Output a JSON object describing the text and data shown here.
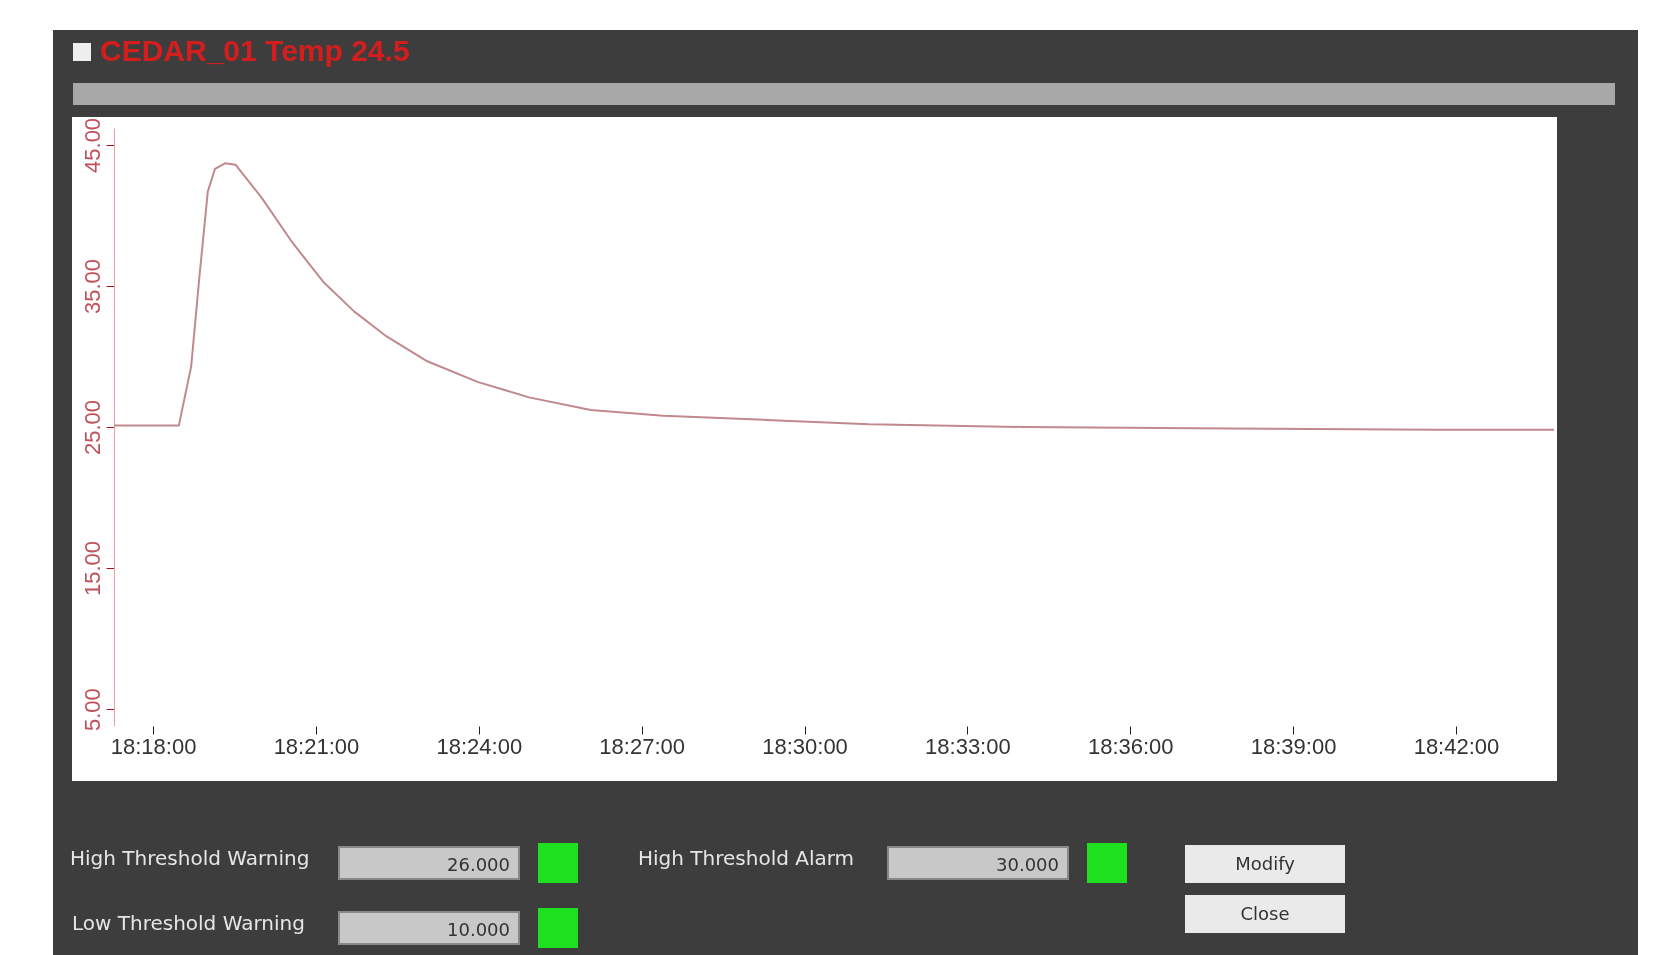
{
  "chart_data": {
    "type": "line",
    "title": "CEDAR_01 Temp   24.5",
    "x": [
      18.288,
      18.3079,
      18.3117,
      18.3142,
      18.3168,
      18.319,
      18.3221,
      18.3253,
      18.3332,
      18.3427,
      18.3522,
      18.3617,
      18.3712,
      18.3838,
      18.3996,
      18.4154,
      18.4344,
      18.4566,
      18.4882,
      18.5198,
      18.5672,
      18.6305,
      18.6937,
      18.7301
    ],
    "series": [
      {
        "color": "#c0898e",
        "values": [
          25.1,
          25.1,
          29.3,
          35.6,
          41.7,
          43.3,
          43.7,
          43.6,
          41.3,
          38.1,
          35.3,
          33.2,
          31.5,
          29.7,
          28.2,
          27.1,
          26.2,
          25.8,
          25.5,
          25.2,
          25.0,
          24.9,
          24.8,
          24.8
        ]
      }
    ],
    "xlim": [
      18.288,
      18.7301
    ],
    "xticks": [
      {
        "value": 18.3,
        "label": "18:18:00"
      },
      {
        "value": 18.35,
        "label": "18:21:00"
      },
      {
        "value": 18.4,
        "label": "18:24:00"
      },
      {
        "value": 18.45,
        "label": "18:27:00"
      },
      {
        "value": 18.5,
        "label": "18:30:00"
      },
      {
        "value": 18.55,
        "label": "18:33:00"
      },
      {
        "value": 18.6,
        "label": "18:36:00"
      },
      {
        "value": 18.65,
        "label": "18:39:00"
      },
      {
        "value": 18.7,
        "label": "18:42:00"
      }
    ],
    "ylim": [
      3.8,
      46.2
    ],
    "yticks": [
      {
        "value": 5,
        "label": "5.00"
      },
      {
        "value": 15,
        "label": "15.00"
      },
      {
        "value": 25,
        "label": "25.00"
      },
      {
        "value": 35,
        "label": "35.00"
      },
      {
        "value": 45,
        "label": "45.00"
      }
    ],
    "grid": false,
    "marker": "none",
    "line_style": "solid",
    "annotations": [
      "High Threshold Warning",
      "26.000",
      "High Threshold Alarm",
      "30.000",
      "Low Threshold Warning",
      "10.000",
      "Modify",
      "Close"
    ]
  }
}
